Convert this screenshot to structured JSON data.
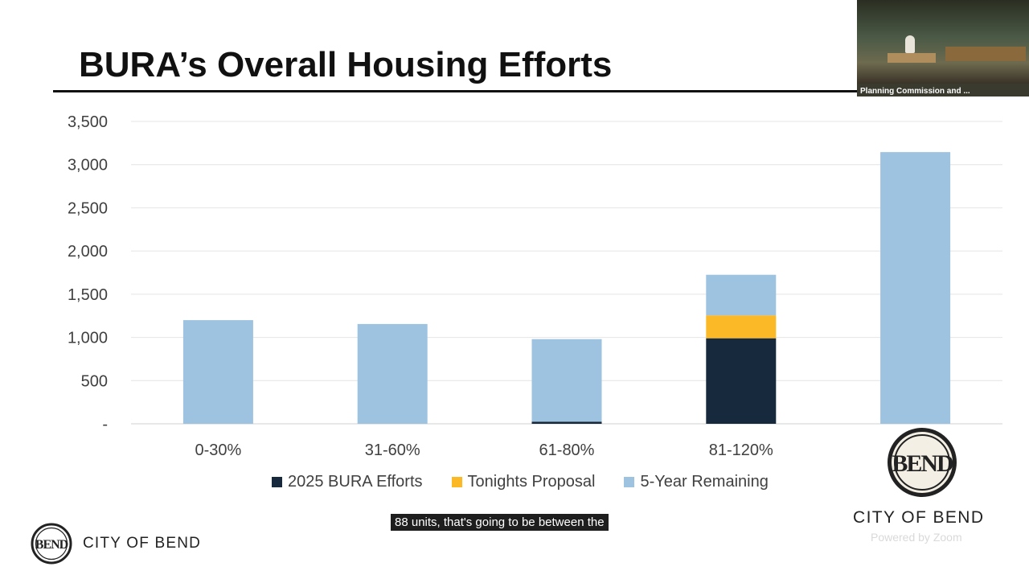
{
  "slide": {
    "title": "BURA’s Overall Housing Efforts"
  },
  "chart_data": {
    "type": "bar",
    "stacked": true,
    "title": "",
    "xlabel": "",
    "ylabel": "",
    "ylim": [
      0,
      3500
    ],
    "grid": true,
    "legend_position": "bottom",
    "categories": [
      "0-30%",
      "31-60%",
      "61-80%",
      "81-120%",
      ""
    ],
    "y_tick_values": [
      0,
      500,
      1000,
      1500,
      2000,
      2500,
      3000,
      3500
    ],
    "y_tick_labels": [
      "-",
      "500",
      "1,000",
      "1,500",
      "2,000",
      "2,500",
      "3,000",
      "3,500"
    ],
    "series": [
      {
        "name": "2025 BURA Efforts",
        "color": "#16293d",
        "values": [
          0,
          0,
          25,
          990,
          0
        ]
      },
      {
        "name": "Tonights Proposal",
        "color": "#fbb928",
        "values": [
          0,
          0,
          0,
          265,
          0
        ]
      },
      {
        "name": "5-Year Remaining",
        "color": "#9dc3e1",
        "values": [
          1200,
          1155,
          955,
          470,
          3145
        ]
      }
    ]
  },
  "caption": {
    "text": "88 units, that's going to be between the"
  },
  "video_tile": {
    "label": "Planning Commission and ..."
  },
  "branding": {
    "logo_mark": "BEND",
    "small_logo_text": "CITY OF BEND",
    "large_logo_text": "CITY OF BEND",
    "powered_by": "Powered by Zoom"
  }
}
